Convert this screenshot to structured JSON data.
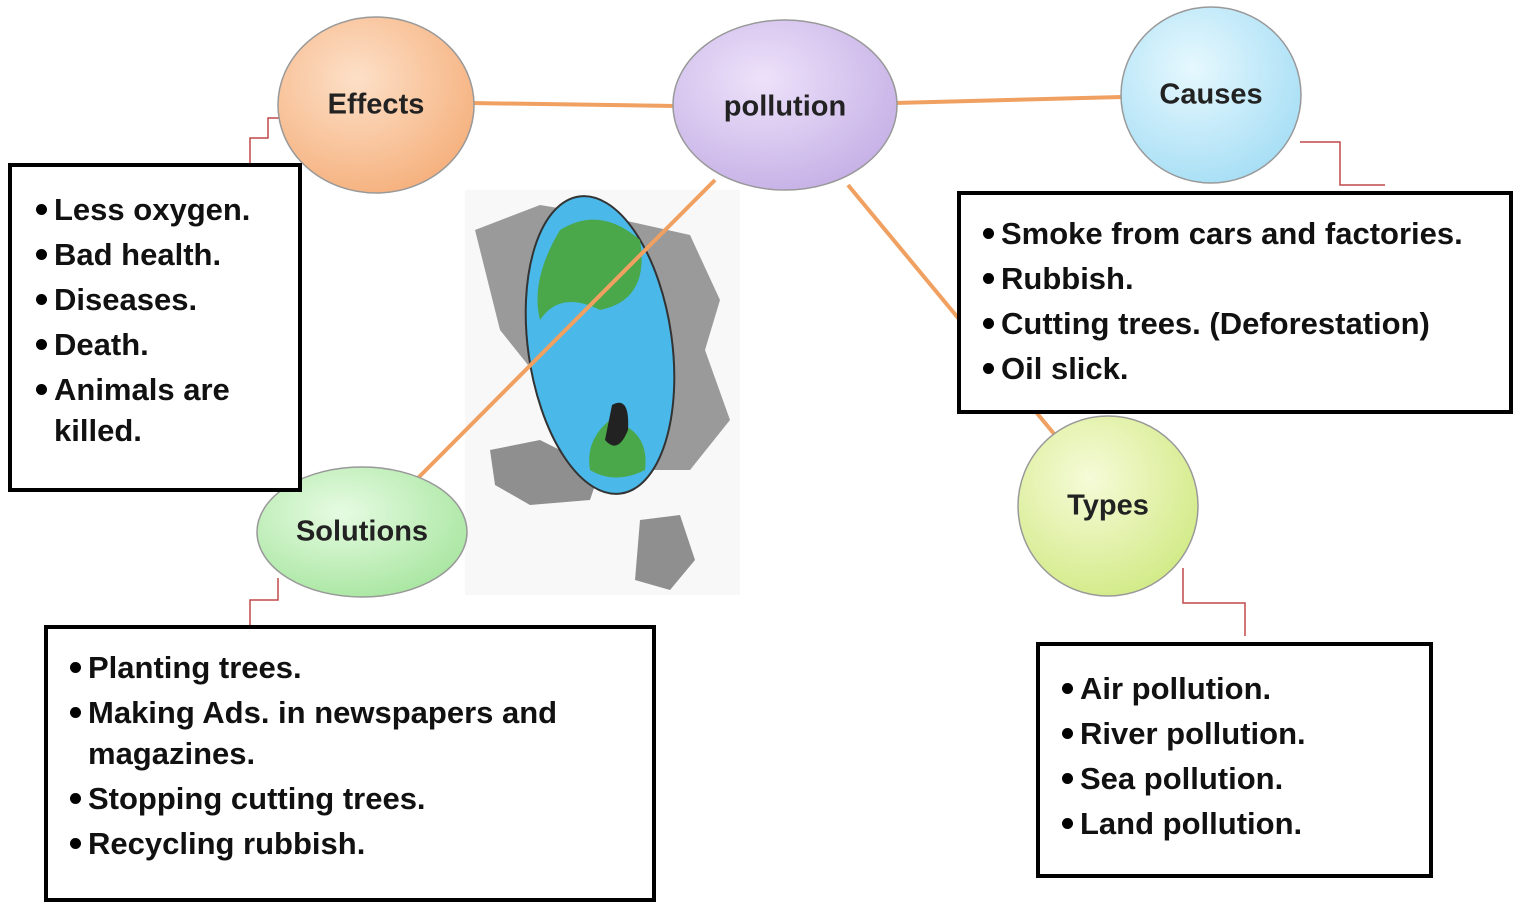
{
  "center": {
    "label": "pollution"
  },
  "nodes": [
    {
      "label": "Effects",
      "items": [
        "Less oxygen.",
        "Bad health.",
        "Diseases.",
        "Death.",
        "Animals are killed."
      ]
    },
    {
      "label": "Causes",
      "items": [
        "Smoke from cars and factories.",
        "Rubbish.",
        "Cutting trees. (Deforestation)",
        "Oil slick."
      ]
    },
    {
      "label": "Solutions",
      "items": [
        "Planting trees.",
        "Making Ads. in newspapers and magazines.",
        "Stopping cutting trees.",
        "Recycling rubbish."
      ]
    },
    {
      "label": "Types",
      "items": [
        "Air pollution.",
        "River pollution.",
        "Sea pollution.",
        "Land pollution."
      ]
    }
  ]
}
